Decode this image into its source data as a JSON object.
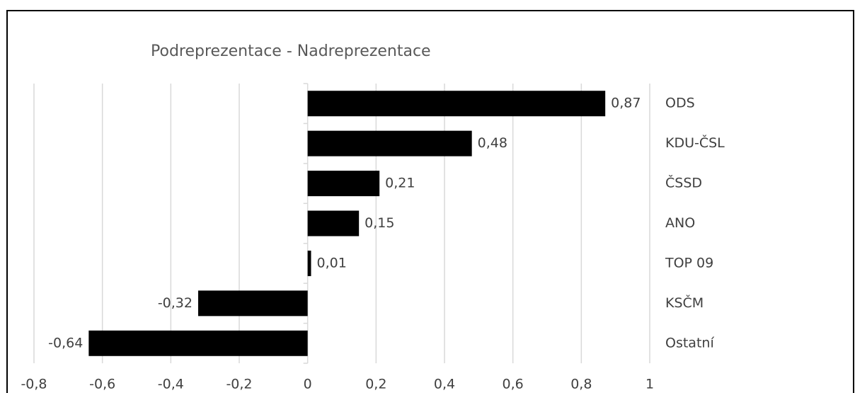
{
  "chart_data": {
    "type": "bar",
    "orientation": "horizontal",
    "title": "Podreprezentace - Nadreprezentace",
    "categories": [
      "ODS",
      "KDU-ČSL",
      "ČSSD",
      "ANO",
      "TOP 09",
      "KSČM",
      "Ostatní"
    ],
    "values": [
      0.87,
      0.48,
      0.21,
      0.15,
      0.01,
      -0.32,
      -0.64
    ],
    "value_labels": [
      "0,87",
      "0,48",
      "0,21",
      "0,15",
      "0,01",
      "-0,32",
      "-0,64"
    ],
    "color": "#000000",
    "xlim": [
      -0.8,
      1
    ],
    "xticks": [
      {
        "value": -0.8,
        "label": "-0,8"
      },
      {
        "value": -0.6,
        "label": "-0,6"
      },
      {
        "value": -0.4,
        "label": "-0,4"
      },
      {
        "value": -0.2,
        "label": "-0,2"
      },
      0,
      {
        "value": 0.2,
        "label": "0,2"
      },
      {
        "value": 0.4,
        "label": "0,4"
      },
      {
        "value": 0.6,
        "label": "0,6"
      },
      {
        "value": 0.8,
        "label": "0,8"
      },
      1
    ],
    "grid": true
  }
}
